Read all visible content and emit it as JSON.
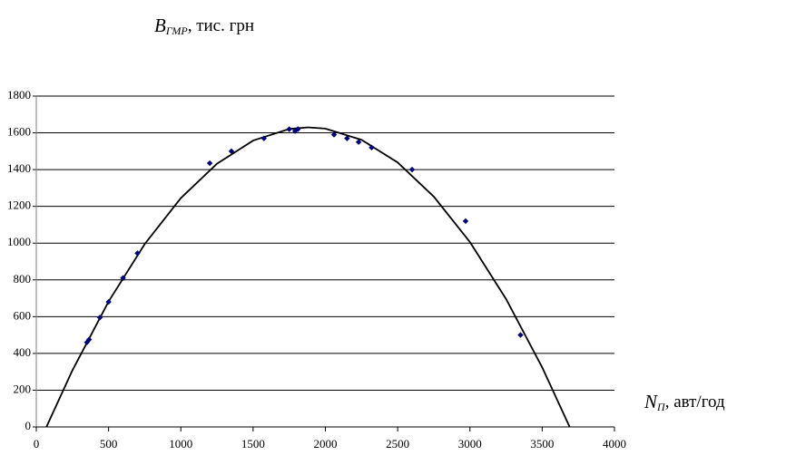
{
  "chart_data": {
    "type": "scatter",
    "y_label": {
      "symbol": "B",
      "subscript": "ГМР",
      "unit": ", тис. грн"
    },
    "x_label": {
      "symbol": "N",
      "subscript": "П",
      "unit": ",  авт/год"
    },
    "x": [
      350,
      365,
      440,
      500,
      600,
      700,
      1200,
      1350,
      1575,
      1750,
      1790,
      1810,
      2060,
      2150,
      2230,
      2320,
      2600,
      2970,
      3350
    ],
    "values": [
      460,
      475,
      595,
      680,
      810,
      945,
      1435,
      1500,
      1570,
      1620,
      1610,
      1620,
      1590,
      1570,
      1550,
      1520,
      1400,
      1120,
      500
    ],
    "color": "#000080",
    "trendline": {
      "color": "#000000",
      "x": [
        70,
        250,
        500,
        750,
        1000,
        1250,
        1500,
        1750,
        1880,
        2000,
        2250,
        2500,
        2750,
        3000,
        3250,
        3500,
        3690
      ],
      "values": [
        0,
        308,
        682,
        995,
        1245,
        1432,
        1558,
        1621,
        1630,
        1623,
        1562,
        1439,
        1253,
        1006,
        696,
        324,
        0
      ]
    },
    "xlim": [
      0,
      4000
    ],
    "xticks": [
      0,
      500,
      1000,
      1500,
      2000,
      2500,
      3000,
      3500,
      4000
    ],
    "ylim": [
      0,
      1800
    ],
    "yticks": [
      0,
      200,
      400,
      600,
      800,
      1000,
      1200,
      1400,
      1600,
      1800
    ],
    "grid": true
  }
}
